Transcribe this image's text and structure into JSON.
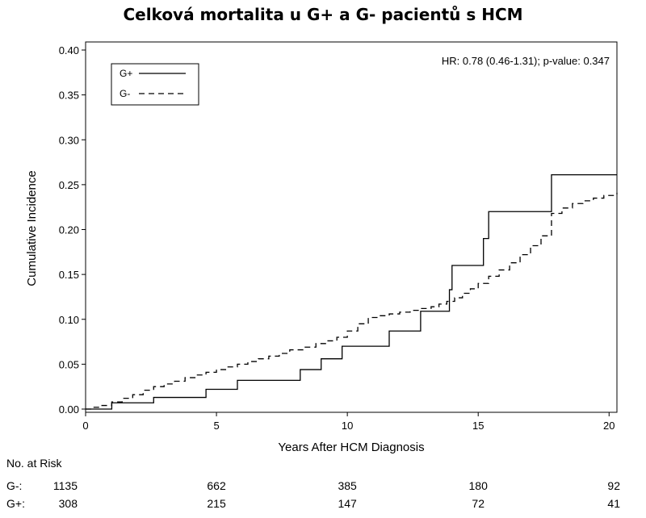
{
  "title": "Celková mortalita u G+ a G- pacientů s HCM",
  "annotation": "HR: 0.78 (0.46-1.31); p-value: 0.347",
  "chart_data": {
    "type": "line",
    "title": "Celková mortalita u G+ a G- pacientů s HCM",
    "xlabel": "Years After HCM Diagnosis",
    "ylabel": "Cumulative Incidence",
    "xlim": [
      0,
      20.3
    ],
    "ylim": [
      0,
      0.4
    ],
    "xticks": [
      0,
      5,
      10,
      15,
      20
    ],
    "xtick_labels": [
      "0",
      "5",
      "10",
      "15",
      "20"
    ],
    "yticks": [
      0,
      0.05,
      0.1,
      0.15,
      0.2,
      0.25,
      0.3,
      0.35,
      0.4
    ],
    "ytick_labels": [
      "0.00",
      "0.05",
      "0.10",
      "0.15",
      "0.20",
      "0.25",
      "0.30",
      "0.35",
      "0.40"
    ],
    "grid": false,
    "legend_position": "top-left",
    "step": true,
    "series": [
      {
        "name": "G+",
        "dash": "solid",
        "x": [
          0,
          1.0,
          2.6,
          4.6,
          5.8,
          8.2,
          9.0,
          9.8,
          11.6,
          12.8,
          13.9,
          14.0,
          15.2,
          15.4,
          17.8,
          20.3
        ],
        "y": [
          0,
          0.007,
          0.013,
          0.022,
          0.032,
          0.044,
          0.056,
          0.07,
          0.087,
          0.109,
          0.133,
          0.16,
          0.19,
          0.22,
          0.261,
          0.261
        ]
      },
      {
        "name": "G-",
        "dash": "dashed",
        "x": [
          0,
          0.3,
          0.6,
          1.0,
          1.4,
          1.8,
          2.2,
          2.6,
          3.0,
          3.4,
          3.8,
          4.2,
          4.6,
          5.0,
          5.4,
          5.8,
          6.2,
          6.6,
          7.0,
          7.4,
          7.8,
          8.3,
          8.8,
          9.2,
          9.6,
          10.0,
          10.4,
          10.8,
          11.2,
          11.6,
          12.0,
          12.4,
          12.8,
          13.2,
          13.5,
          13.8,
          14.1,
          14.4,
          14.7,
          15.0,
          15.4,
          15.8,
          16.2,
          16.6,
          17.0,
          17.4,
          17.8,
          18.2,
          18.6,
          19.0,
          19.4,
          19.8,
          20.3
        ],
        "y": [
          0,
          0.002,
          0.004,
          0.008,
          0.012,
          0.016,
          0.021,
          0.025,
          0.028,
          0.031,
          0.035,
          0.038,
          0.041,
          0.044,
          0.047,
          0.05,
          0.053,
          0.056,
          0.059,
          0.062,
          0.066,
          0.069,
          0.073,
          0.076,
          0.08,
          0.087,
          0.095,
          0.102,
          0.104,
          0.106,
          0.108,
          0.11,
          0.112,
          0.114,
          0.117,
          0.12,
          0.124,
          0.129,
          0.134,
          0.14,
          0.148,
          0.155,
          0.163,
          0.172,
          0.182,
          0.193,
          0.218,
          0.224,
          0.229,
          0.232,
          0.235,
          0.238,
          0.241
        ]
      }
    ],
    "risk_table": {
      "title": "No. at Risk",
      "x": [
        0,
        5,
        10,
        15,
        20
      ],
      "rows": [
        {
          "label": "G-:",
          "values": [
            "1135",
            "662",
            "385",
            "180",
            "92"
          ]
        },
        {
          "label": "G+:",
          "values": [
            "308",
            "215",
            "147",
            "72",
            "41"
          ]
        }
      ]
    }
  }
}
